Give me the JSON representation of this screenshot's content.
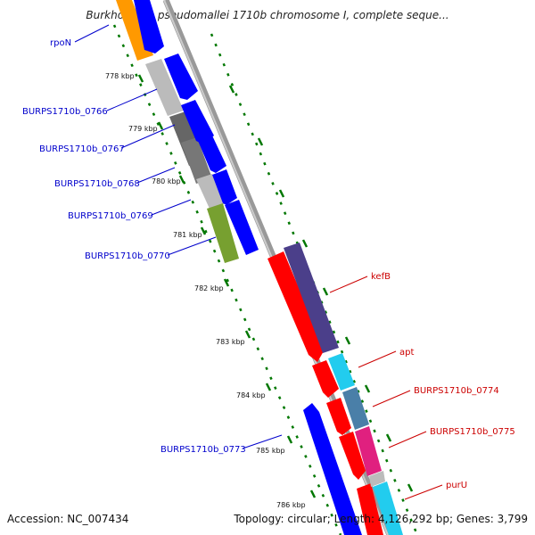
{
  "title": "Burkholderia pseudomallei 1710b chromosome I, complete seque...",
  "accession": "Accession: NC_007434",
  "topology": "Topology: circular; Length: 4,126,292 bp; Genes: 3,799",
  "kbp_ticks": [
    "778 kbp",
    "779 kbp",
    "780 kbp",
    "781 kbp",
    "782 kbp",
    "783 kbp",
    "784 kbp",
    "785 kbp",
    "786 kbp"
  ],
  "genes_left": [
    {
      "name": "rpoN",
      "color": "#0000cc"
    },
    {
      "name": "BURPS1710b_0766",
      "color": "#0000cc"
    },
    {
      "name": "BURPS1710b_0767",
      "color": "#0000cc"
    },
    {
      "name": "BURPS1710b_0768",
      "color": "#0000cc"
    },
    {
      "name": "BURPS1710b_0769",
      "color": "#0000cc"
    },
    {
      "name": "BURPS1710b_0770",
      "color": "#0000cc"
    },
    {
      "name": "BURPS1710b_0773",
      "color": "#0000cc"
    }
  ],
  "genes_right": [
    {
      "name": "kefB",
      "color": "#cc0000"
    },
    {
      "name": "apt",
      "color": "#cc0000"
    },
    {
      "name": "BURPS1710b_0774",
      "color": "#cc0000"
    },
    {
      "name": "BURPS1710b_0775",
      "color": "#cc0000"
    },
    {
      "name": "purU",
      "color": "#cc0000"
    }
  ],
  "colors": {
    "forward_strand": "#0000ff",
    "reverse_strand": "#ff0000",
    "backbone": "#999999",
    "tick_green": "#007700",
    "rpoN_box": "#ff9900",
    "gray_box": "#bbbbbb",
    "dark_gray_box": "#666666",
    "olive_box": "#77a030",
    "purple_box": "#4b3f8a",
    "cyan_box": "#22ccee",
    "steel_box": "#4a7fa8",
    "magenta_box": "#e0207f"
  }
}
